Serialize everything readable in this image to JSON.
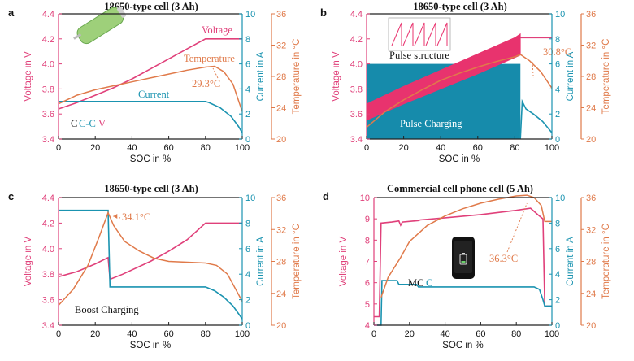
{
  "colors": {
    "voltage": "#e0407a",
    "current": "#1a93b0",
    "temperature": "#e07a4a",
    "axis": "#222222",
    "pulse_fill": "#e8336e",
    "current_fill": "#168bab"
  },
  "chart_data": [
    {
      "panel": "a",
      "type": "line",
      "title": "18650-type cell (3 Ah)",
      "xlabel": "SOC in %",
      "ylabel_left": "Voltage in V",
      "ylabel_right1": "Current in A",
      "ylabel_right2": "Temperature in °C",
      "xlim": [
        0,
        100
      ],
      "xticks": [
        "0",
        "20",
        "40",
        "60",
        "80",
        "100"
      ],
      "ylim_left": [
        3.4,
        4.4
      ],
      "yticks_left": [
        "3.4",
        "3.6",
        "3.8",
        "4.0",
        "4.2",
        "4.4"
      ],
      "ylim_right1": [
        0,
        10
      ],
      "yticks_right1": [
        "0",
        "2",
        "4",
        "6",
        "8",
        "10"
      ],
      "ylim_right2": [
        20,
        36
      ],
      "yticks_right2": [
        "20",
        "24",
        "28",
        "32",
        "36"
      ],
      "labels": {
        "voltage": "Voltage",
        "temperature": "Temperature",
        "current": "Current",
        "mode_c1": "C",
        "mode_c2": "C-C",
        "mode_v": "V",
        "peak": "29.3°C"
      },
      "series": {
        "voltage": [
          [
            0,
            3.64
          ],
          [
            10,
            3.69
          ],
          [
            20,
            3.75
          ],
          [
            30,
            3.81
          ],
          [
            40,
            3.88
          ],
          [
            50,
            3.96
          ],
          [
            60,
            4.04
          ],
          [
            70,
            4.12
          ],
          [
            80,
            4.2
          ],
          [
            85,
            4.2
          ],
          [
            100,
            4.2
          ]
        ],
        "current": [
          [
            0,
            3.0
          ],
          [
            80,
            3.0
          ],
          [
            82,
            2.9
          ],
          [
            88,
            2.5
          ],
          [
            94,
            1.8
          ],
          [
            98,
            1.0
          ],
          [
            100,
            0.5
          ]
        ],
        "temperature": [
          [
            0,
            24.5
          ],
          [
            10,
            25.6
          ],
          [
            20,
            26.3
          ],
          [
            30,
            26.8
          ],
          [
            40,
            27.3
          ],
          [
            50,
            27.8
          ],
          [
            60,
            28.3
          ],
          [
            70,
            28.8
          ],
          [
            80,
            29.2
          ],
          [
            85,
            29.3
          ],
          [
            90,
            28.6
          ],
          [
            95,
            27.0
          ],
          [
            100,
            23.5
          ]
        ]
      }
    },
    {
      "panel": "b",
      "type": "line",
      "title": "18650-type cell (3 Ah)",
      "xlabel": "SOC in %",
      "ylabel_left": "Voltage in V",
      "ylabel_right1": "Current in A",
      "ylabel_right2": "Temperature in °C",
      "xlim": [
        0,
        100
      ],
      "xticks": [
        "0",
        "20",
        "40",
        "60",
        "80",
        "100"
      ],
      "ylim_left": [
        3.4,
        4.4
      ],
      "yticks_left": [
        "3.4",
        "3.6",
        "3.8",
        "4.0",
        "4.2",
        "4.4"
      ],
      "ylim_right1": [
        0,
        10
      ],
      "yticks_right1": [
        "0",
        "2",
        "4",
        "6",
        "8",
        "10"
      ],
      "ylim_right2": [
        20,
        36
      ],
      "yticks_right2": [
        "20",
        "24",
        "28",
        "32",
        "36"
      ],
      "labels": {
        "inset": "Pulse structure",
        "mode": "Pulse Charging",
        "peak": "30.8°C"
      },
      "series": {
        "voltage_low": [
          [
            0,
            3.55
          ],
          [
            20,
            3.68
          ],
          [
            40,
            3.8
          ],
          [
            60,
            3.92
          ],
          [
            80,
            4.05
          ],
          [
            83,
            4.07
          ]
        ],
        "voltage_high": [
          [
            0,
            3.68
          ],
          [
            20,
            3.82
          ],
          [
            40,
            3.95
          ],
          [
            60,
            4.08
          ],
          [
            80,
            4.21
          ],
          [
            83,
            4.24
          ]
        ],
        "voltage_cv": [
          [
            83,
            4.21
          ],
          [
            100,
            4.21
          ]
        ],
        "current_pulse": [
          [
            0,
            6.0
          ],
          [
            83,
            6.0
          ]
        ],
        "current_cv": [
          [
            83,
            0
          ],
          [
            84,
            3.0
          ],
          [
            86,
            2.4
          ],
          [
            90,
            2.0
          ],
          [
            95,
            1.4
          ],
          [
            100,
            0.5
          ]
        ],
        "temperature": [
          [
            0,
            21.5
          ],
          [
            10,
            23.5
          ],
          [
            20,
            25.0
          ],
          [
            30,
            26.3
          ],
          [
            40,
            27.5
          ],
          [
            50,
            28.4
          ],
          [
            60,
            29.2
          ],
          [
            70,
            29.9
          ],
          [
            80,
            30.5
          ],
          [
            83,
            30.8
          ],
          [
            88,
            30.0
          ],
          [
            94,
            28.6
          ],
          [
            100,
            26.5
          ]
        ]
      }
    },
    {
      "panel": "c",
      "type": "line",
      "title": "18650-type cell (3 Ah)",
      "xlabel": "SOC in %",
      "ylabel_left": "Voltage in V",
      "ylabel_right1": "Current in A",
      "ylabel_right2": "Temperature in °C",
      "xlim": [
        0,
        100
      ],
      "xticks": [
        "0",
        "20",
        "40",
        "60",
        "80",
        "100"
      ],
      "ylim_left": [
        3.4,
        4.4
      ],
      "yticks_left": [
        "3.4",
        "3.6",
        "3.8",
        "4.0",
        "4.2",
        "4.4"
      ],
      "ylim_right1": [
        0,
        10
      ],
      "yticks_right1": [
        "0",
        "2",
        "4",
        "6",
        "8",
        "10"
      ],
      "ylim_right2": [
        20,
        36
      ],
      "yticks_right2": [
        "20",
        "24",
        "28",
        "32",
        "36"
      ],
      "labels": {
        "mode": "Boost Charging",
        "peak": "34.1°C"
      },
      "series": {
        "voltage": [
          [
            0,
            3.78
          ],
          [
            10,
            3.82
          ],
          [
            20,
            3.88
          ],
          [
            27,
            3.93
          ],
          [
            28,
            3.76
          ],
          [
            35,
            3.8
          ],
          [
            50,
            3.9
          ],
          [
            60,
            3.98
          ],
          [
            70,
            4.07
          ],
          [
            80,
            4.2
          ],
          [
            100,
            4.2
          ]
        ],
        "current": [
          [
            0,
            9.0
          ],
          [
            27,
            9.0
          ],
          [
            28,
            3.0
          ],
          [
            80,
            3.0
          ],
          [
            85,
            2.7
          ],
          [
            90,
            2.2
          ],
          [
            95,
            1.5
          ],
          [
            100,
            0.5
          ]
        ],
        "temperature": [
          [
            0,
            22.5
          ],
          [
            8,
            24.5
          ],
          [
            16,
            27.5
          ],
          [
            22,
            31.0
          ],
          [
            27,
            34.1
          ],
          [
            30,
            32.5
          ],
          [
            36,
            30.5
          ],
          [
            44,
            29.3
          ],
          [
            52,
            28.4
          ],
          [
            60,
            28.0
          ],
          [
            70,
            27.9
          ],
          [
            80,
            27.8
          ],
          [
            86,
            27.5
          ],
          [
            92,
            26.4
          ],
          [
            100,
            23.0
          ]
        ]
      }
    },
    {
      "panel": "d",
      "type": "line",
      "title": "Commercial cell phone cell (5 Ah)",
      "xlabel": "SOC in %",
      "ylabel_left": "Voltage in V",
      "ylabel_right1": "Current in A",
      "ylabel_right2": "Temperature in °C",
      "xlim": [
        0,
        100
      ],
      "xticks": [
        "0",
        "20",
        "40",
        "60",
        "80",
        "100"
      ],
      "ylim_left": [
        4,
        10
      ],
      "yticks_left": [
        "4",
        "5",
        "6",
        "7",
        "8",
        "9",
        "10"
      ],
      "ylim_right1": [
        0,
        10
      ],
      "yticks_right1": [
        "0",
        "2",
        "4",
        "6",
        "8",
        "10"
      ],
      "ylim_right2": [
        20,
        36
      ],
      "yticks_right2": [
        "20",
        "24",
        "28",
        "32",
        "36"
      ],
      "labels": {
        "mode_mc": "MC",
        "mode_c": "C",
        "peak": "36.3°C"
      },
      "series": {
        "voltage": [
          [
            0,
            4.4
          ],
          [
            3,
            4.4
          ],
          [
            4,
            8.8
          ],
          [
            10,
            8.85
          ],
          [
            14,
            8.9
          ],
          [
            15,
            8.7
          ],
          [
            16,
            8.85
          ],
          [
            25,
            8.92
          ],
          [
            26,
            8.95
          ],
          [
            40,
            9.05
          ],
          [
            60,
            9.2
          ],
          [
            80,
            9.4
          ],
          [
            88,
            9.5
          ],
          [
            92,
            9.2
          ],
          [
            95,
            9.0
          ],
          [
            96,
            4.9
          ],
          [
            100,
            4.9
          ]
        ],
        "current": [
          [
            0,
            0
          ],
          [
            4,
            0
          ],
          [
            4.5,
            3.5
          ],
          [
            13,
            3.5
          ],
          [
            14,
            3.2
          ],
          [
            24,
            3.2
          ],
          [
            25,
            3.0
          ],
          [
            90,
            3.0
          ],
          [
            93,
            2.8
          ],
          [
            95,
            2.0
          ],
          [
            96,
            1.5
          ],
          [
            100,
            1.5
          ]
        ],
        "temperature": [
          [
            4,
            23.5
          ],
          [
            8,
            26.0
          ],
          [
            15,
            28.5
          ],
          [
            20,
            30.5
          ],
          [
            30,
            32.5
          ],
          [
            40,
            33.7
          ],
          [
            50,
            34.6
          ],
          [
            60,
            35.3
          ],
          [
            70,
            35.8
          ],
          [
            80,
            36.2
          ],
          [
            86,
            36.3
          ],
          [
            90,
            36.0
          ],
          [
            94,
            35.0
          ],
          [
            96,
            33.0
          ],
          [
            100,
            33.0
          ]
        ]
      }
    }
  ]
}
